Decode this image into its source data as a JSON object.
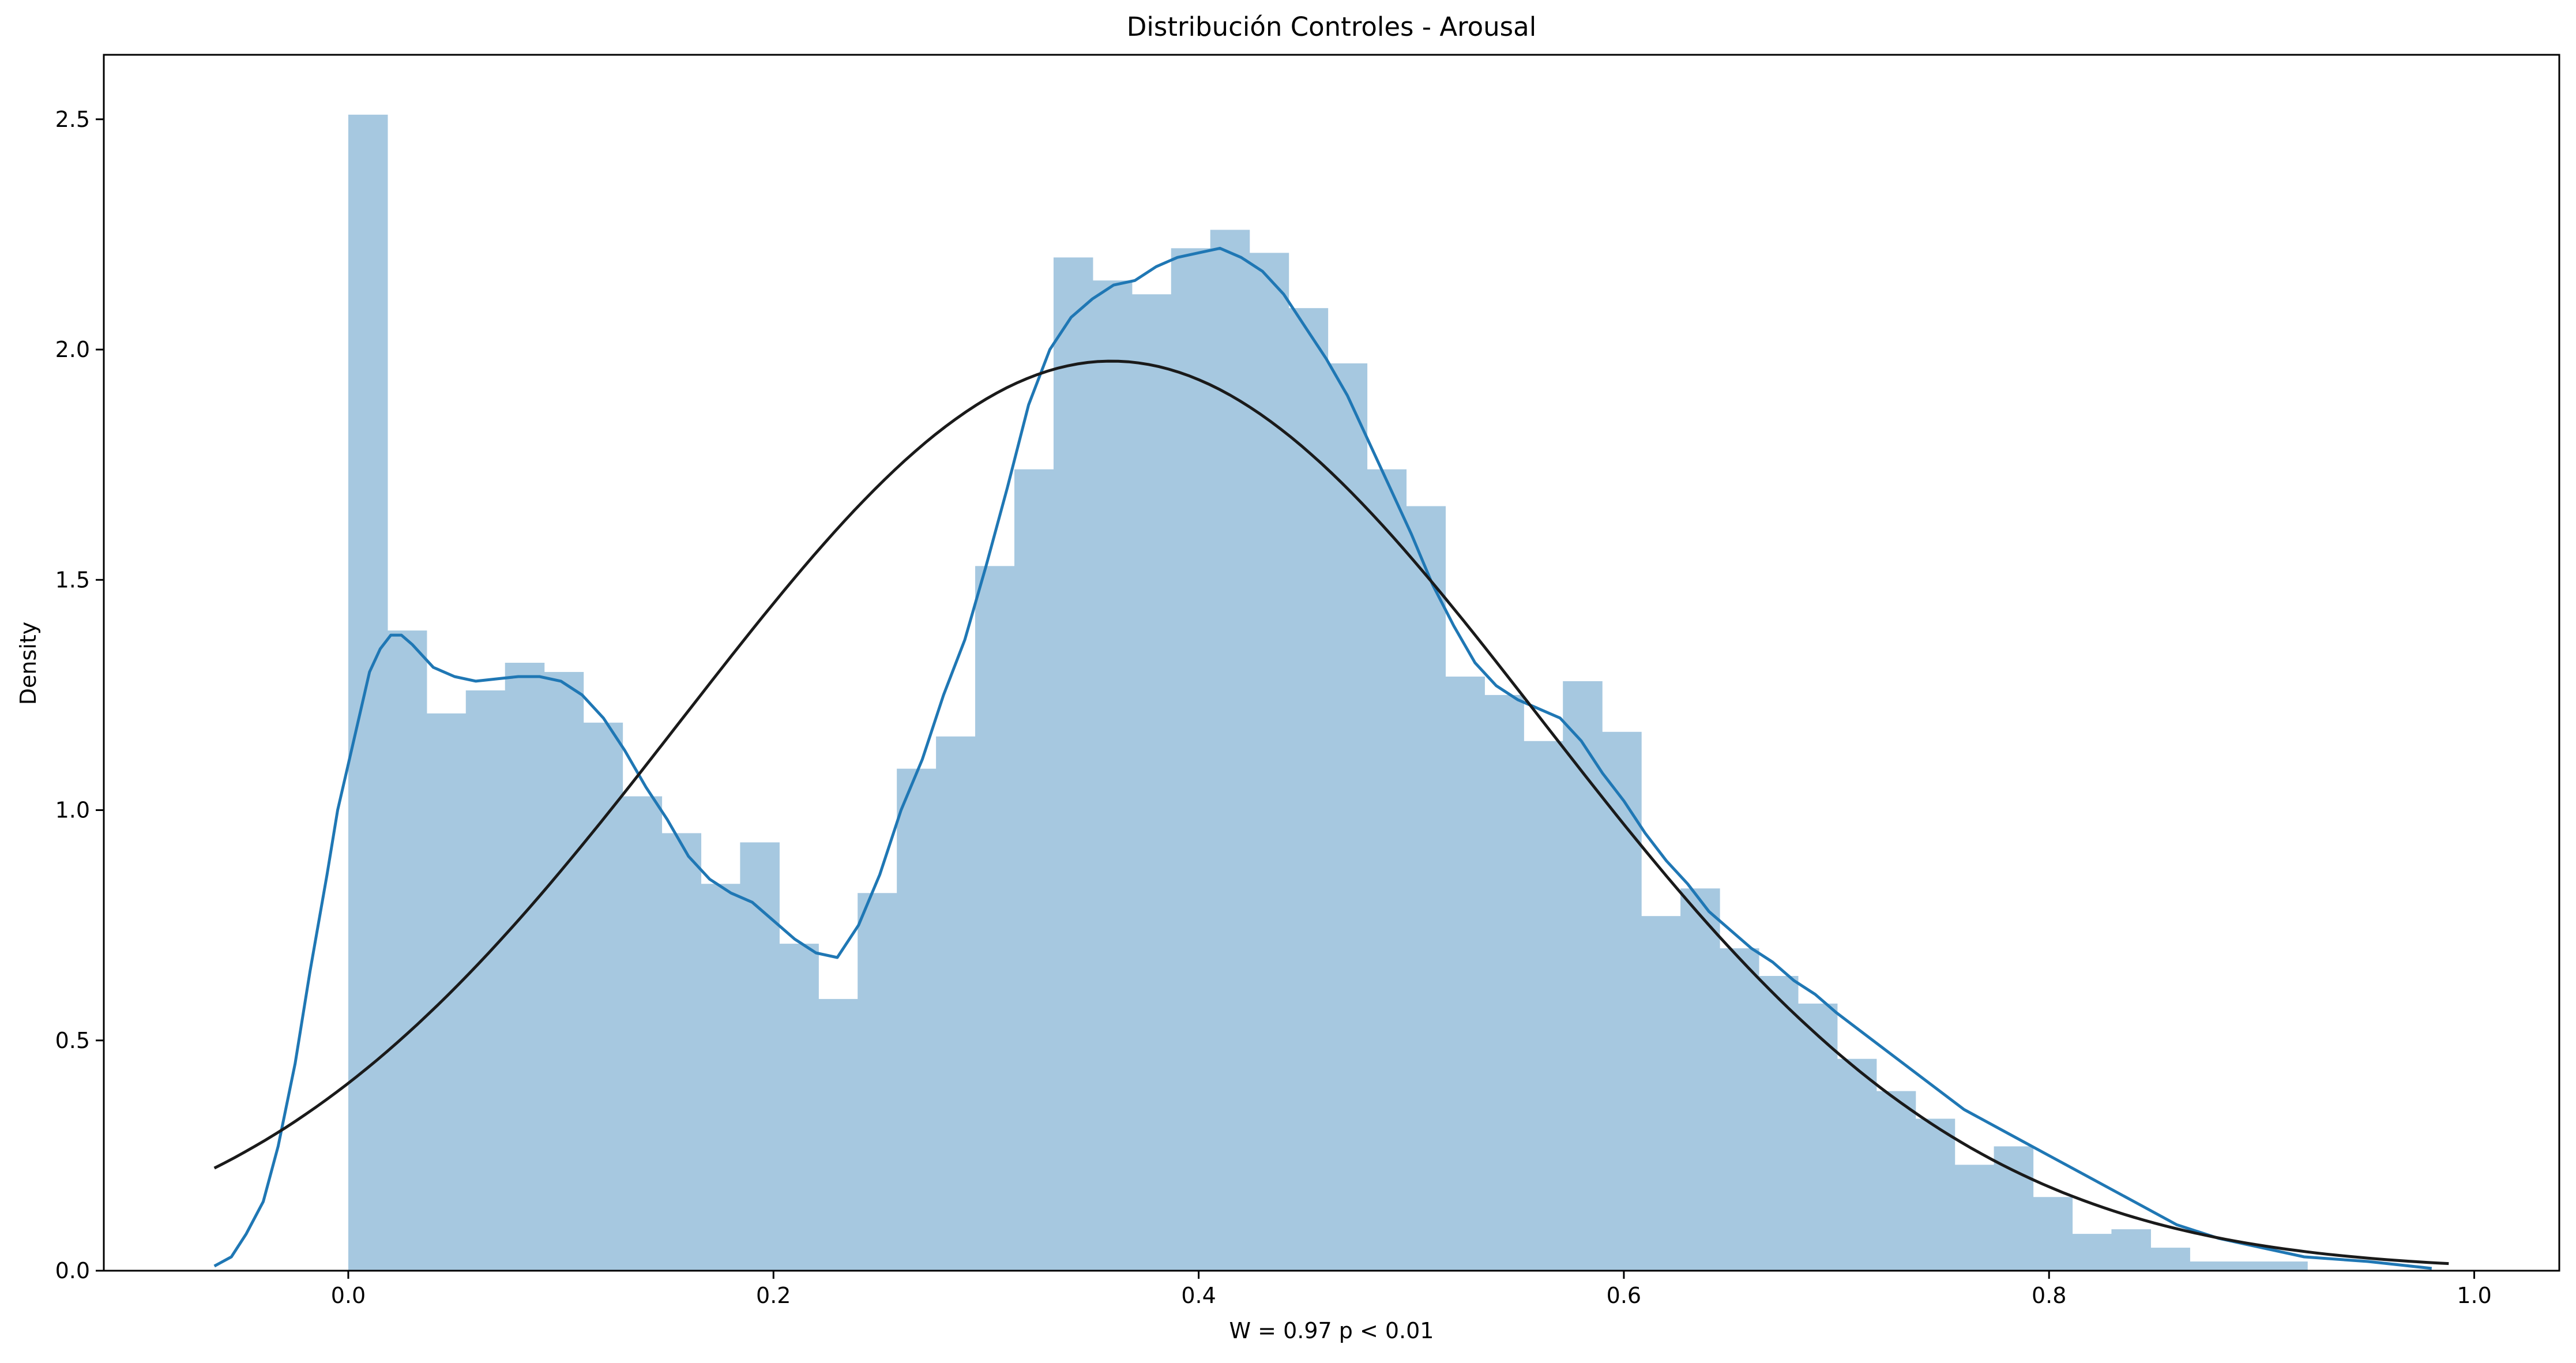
{
  "chart_data": {
    "type": "histogram",
    "title": "Distribución Controles - Arousal",
    "xlabel": "W = 0.97 p < 0.01",
    "ylabel": "Density",
    "xlim": [
      -0.115,
      1.04
    ],
    "ylim": [
      0,
      2.64
    ],
    "xticks": [
      0.0,
      0.2,
      0.4,
      0.6,
      0.8,
      1.0
    ],
    "xtick_labels": [
      "0.0",
      "0.2",
      "0.4",
      "0.6",
      "0.8",
      "1.0"
    ],
    "yticks": [
      0.0,
      0.5,
      1.0,
      1.5,
      2.0,
      2.5
    ],
    "ytick_labels": [
      "0.0",
      "0.5",
      "1.0",
      "1.5",
      "2.0",
      "2.5"
    ],
    "grid": false,
    "colors": {
      "hist": "#a6c8e0",
      "kde": "#1f77b4",
      "normal": "#1a1a1a",
      "axes": "#000000"
    },
    "bins": {
      "start": 0.0,
      "width": 0.01843,
      "values": [
        2.51,
        1.39,
        1.21,
        1.26,
        1.32,
        1.3,
        1.19,
        1.03,
        0.95,
        0.84,
        0.93,
        0.71,
        0.59,
        0.82,
        1.09,
        1.16,
        1.53,
        1.74,
        2.2,
        2.15,
        2.12,
        2.22,
        2.26,
        2.21,
        2.09,
        1.97,
        1.74,
        1.66,
        1.29,
        1.25,
        1.15,
        1.28,
        1.17,
        0.77,
        0.83,
        0.7,
        0.64,
        0.58,
        0.46,
        0.39,
        0.33,
        0.23,
        0.27,
        0.16,
        0.08,
        0.09,
        0.05,
        0.02,
        0.02,
        0.02
      ]
    },
    "kde": {
      "x": [
        -0.063,
        -0.055,
        -0.048,
        -0.04,
        -0.033,
        -0.025,
        -0.018,
        -0.01,
        -0.005,
        0.0,
        0.005,
        0.01,
        0.015,
        0.02,
        0.025,
        0.03,
        0.04,
        0.05,
        0.06,
        0.07,
        0.08,
        0.09,
        0.1,
        0.11,
        0.12,
        0.13,
        0.14,
        0.15,
        0.16,
        0.17,
        0.18,
        0.19,
        0.2,
        0.21,
        0.22,
        0.23,
        0.24,
        0.25,
        0.26,
        0.27,
        0.28,
        0.29,
        0.3,
        0.31,
        0.32,
        0.33,
        0.34,
        0.35,
        0.36,
        0.37,
        0.38,
        0.39,
        0.4,
        0.41,
        0.42,
        0.43,
        0.44,
        0.45,
        0.46,
        0.47,
        0.48,
        0.49,
        0.5,
        0.51,
        0.52,
        0.53,
        0.54,
        0.55,
        0.56,
        0.57,
        0.58,
        0.59,
        0.6,
        0.61,
        0.62,
        0.63,
        0.64,
        0.65,
        0.66,
        0.67,
        0.68,
        0.69,
        0.7,
        0.72,
        0.74,
        0.76,
        0.78,
        0.8,
        0.82,
        0.84,
        0.86,
        0.88,
        0.9,
        0.92,
        0.95,
        0.98
      ],
      "y": [
        0.01,
        0.03,
        0.08,
        0.15,
        0.27,
        0.45,
        0.65,
        0.86,
        1.0,
        1.1,
        1.2,
        1.3,
        1.35,
        1.38,
        1.38,
        1.36,
        1.31,
        1.29,
        1.28,
        1.285,
        1.29,
        1.29,
        1.28,
        1.25,
        1.2,
        1.13,
        1.05,
        0.98,
        0.9,
        0.85,
        0.82,
        0.8,
        0.76,
        0.72,
        0.69,
        0.68,
        0.75,
        0.86,
        1.0,
        1.11,
        1.25,
        1.37,
        1.53,
        1.7,
        1.88,
        2.0,
        2.07,
        2.11,
        2.14,
        2.15,
        2.18,
        2.2,
        2.21,
        2.22,
        2.2,
        2.17,
        2.12,
        2.05,
        1.98,
        1.9,
        1.8,
        1.7,
        1.6,
        1.49,
        1.4,
        1.32,
        1.27,
        1.24,
        1.22,
        1.2,
        1.15,
        1.08,
        1.02,
        0.95,
        0.89,
        0.84,
        0.78,
        0.74,
        0.7,
        0.67,
        0.63,
        0.6,
        0.56,
        0.49,
        0.42,
        0.35,
        0.3,
        0.25,
        0.2,
        0.15,
        0.1,
        0.07,
        0.05,
        0.03,
        0.02,
        0.005
      ]
    },
    "normal_fit": {
      "mean": 0.359,
      "sd": 0.202,
      "x_range": [
        -0.063,
        0.988
      ]
    }
  }
}
